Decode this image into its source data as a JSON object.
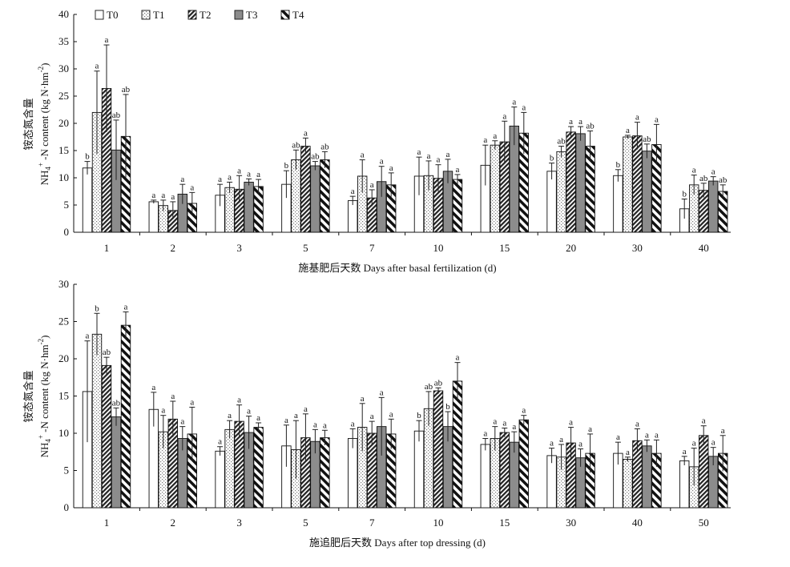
{
  "legend": [
    "T0",
    "T1",
    "T2",
    "T3",
    "T4"
  ],
  "chart_data": [
    {
      "type": "bar",
      "ylabel": "铵态氮含量",
      "ylabel_sub": "NH4+-N content (kg N·hm-2)",
      "xlabel": "施基肥后天数 Days after basal fertilization (d)",
      "ylim": [
        0,
        40
      ],
      "yticks": [
        0,
        5,
        10,
        15,
        20,
        25,
        30,
        35,
        40
      ],
      "categories": [
        "1",
        "2",
        "3",
        "5",
        "7",
        "10",
        "15",
        "20",
        "30",
        "40"
      ],
      "series": [
        {
          "name": "T0",
          "values": [
            11.8,
            5.6,
            6.8,
            8.8,
            5.8,
            10.3,
            12.3,
            11.2,
            10.4,
            4.3
          ],
          "errors": [
            1.2,
            0.3,
            2.0,
            2.5,
            0.8,
            3.5,
            3.7,
            1.5,
            1.1,
            1.8
          ],
          "labels": [
            "b",
            "a",
            "a",
            "b",
            "a",
            "a",
            "a",
            "b",
            "b",
            "b"
          ]
        },
        {
          "name": "T1",
          "values": [
            22.0,
            4.9,
            8.2,
            13.3,
            10.3,
            10.4,
            16.0,
            14.8,
            17.5,
            8.7
          ],
          "errors": [
            7.6,
            1.0,
            1.0,
            1.8,
            3.0,
            2.7,
            0.8,
            1.0,
            0.3,
            1.8
          ],
          "labels": [
            "a",
            "a",
            "a",
            "ab",
            "a",
            "a",
            "a",
            "ab",
            "a",
            "a"
          ]
        },
        {
          "name": "T2",
          "values": [
            26.4,
            4.0,
            7.9,
            15.8,
            6.3,
            9.9,
            16.6,
            18.4,
            17.7,
            7.7
          ],
          "errors": [
            8.0,
            1.6,
            2.5,
            1.5,
            1.5,
            2.5,
            3.8,
            1.0,
            2.5,
            1.3
          ],
          "labels": [
            "a",
            "a",
            "a",
            "a",
            "a",
            "a",
            "a",
            "a",
            "a",
            "ab"
          ]
        },
        {
          "name": "T3",
          "values": [
            15.1,
            7.0,
            9.2,
            12.2,
            9.3,
            11.2,
            19.5,
            18.1,
            14.9,
            9.4
          ],
          "errors": [
            5.5,
            1.8,
            0.6,
            0.8,
            2.8,
            2.2,
            3.5,
            1.3,
            1.3,
            0.8
          ],
          "labels": [
            "ab",
            "a",
            "a",
            "ab",
            "a",
            "a",
            "a",
            "a",
            "ab",
            "a"
          ]
        },
        {
          "name": "T4",
          "values": [
            17.6,
            5.3,
            8.4,
            13.3,
            8.7,
            9.7,
            18.2,
            15.8,
            16.1,
            7.5
          ],
          "errors": [
            7.7,
            2.0,
            1.3,
            1.5,
            2.2,
            0.9,
            3.8,
            2.8,
            3.7,
            1.2
          ],
          "labels": [
            "ab",
            "a",
            "a",
            "ab",
            "a",
            "a",
            "a",
            "ab",
            "a",
            "ab"
          ]
        }
      ]
    },
    {
      "type": "bar",
      "ylabel": "铵态氮含量",
      "ylabel_sub": "NH4+-N content (kg N·hm-2)",
      "xlabel": "施追肥后天数 Days after top dressing (d)",
      "ylim": [
        0,
        30
      ],
      "yticks": [
        0,
        5,
        10,
        15,
        20,
        25,
        30
      ],
      "categories": [
        "1",
        "2",
        "3",
        "5",
        "7",
        "10",
        "15",
        "30",
        "40",
        "50"
      ],
      "series": [
        {
          "name": "T0",
          "values": [
            15.6,
            13.2,
            7.6,
            8.3,
            9.3,
            10.3,
            8.5,
            7.0,
            7.3,
            6.3
          ],
          "errors": [
            6.8,
            2.3,
            0.6,
            2.8,
            1.3,
            1.4,
            0.8,
            1.0,
            1.5,
            0.6
          ],
          "labels": [
            "a",
            "a",
            "a",
            "a",
            "a",
            "b",
            "a",
            "a",
            "a",
            "a"
          ]
        },
        {
          "name": "T1",
          "values": [
            23.3,
            10.2,
            10.5,
            7.8,
            10.8,
            13.3,
            9.3,
            6.8,
            6.5,
            5.5
          ],
          "errors": [
            2.8,
            2.2,
            1.2,
            3.9,
            3.2,
            2.3,
            1.6,
            1.7,
            0.3,
            2.5
          ],
          "labels": [
            "b",
            "a",
            "a",
            "a",
            "a",
            "ab",
            "a",
            "a",
            "a",
            "a"
          ]
        },
        {
          "name": "T2",
          "values": [
            19.1,
            11.9,
            11.6,
            9.4,
            10.0,
            15.7,
            10.1,
            8.7,
            9.0,
            9.7
          ],
          "errors": [
            1.1,
            2.4,
            2.2,
            3.2,
            1.6,
            0.4,
            0.6,
            2.1,
            1.6,
            1.3
          ],
          "labels": [
            "ab",
            "a",
            "a",
            "a",
            "a",
            "ab",
            "a",
            "a",
            "a",
            "a"
          ]
        },
        {
          "name": "T3",
          "values": [
            12.2,
            9.3,
            10.1,
            8.9,
            10.9,
            10.9,
            8.8,
            6.7,
            8.3,
            6.9
          ],
          "errors": [
            1.2,
            1.6,
            2.2,
            1.6,
            3.9,
            2.0,
            1.4,
            1.2,
            0.8,
            1.2
          ],
          "labels": [
            "ab",
            "a",
            "a",
            "a",
            "a",
            "b",
            "a",
            "a",
            "a",
            "a"
          ]
        },
        {
          "name": "T4",
          "values": [
            24.5,
            9.9,
            10.8,
            9.4,
            9.9,
            17.0,
            11.8,
            7.3,
            7.3,
            7.3
          ],
          "errors": [
            1.8,
            3.6,
            0.6,
            1.0,
            2.0,
            2.5,
            0.6,
            2.6,
            1.8,
            2.4
          ],
          "labels": [
            "a",
            "a",
            "a",
            "a",
            "a",
            "a",
            "a",
            "a",
            "a",
            "a"
          ]
        }
      ]
    }
  ]
}
